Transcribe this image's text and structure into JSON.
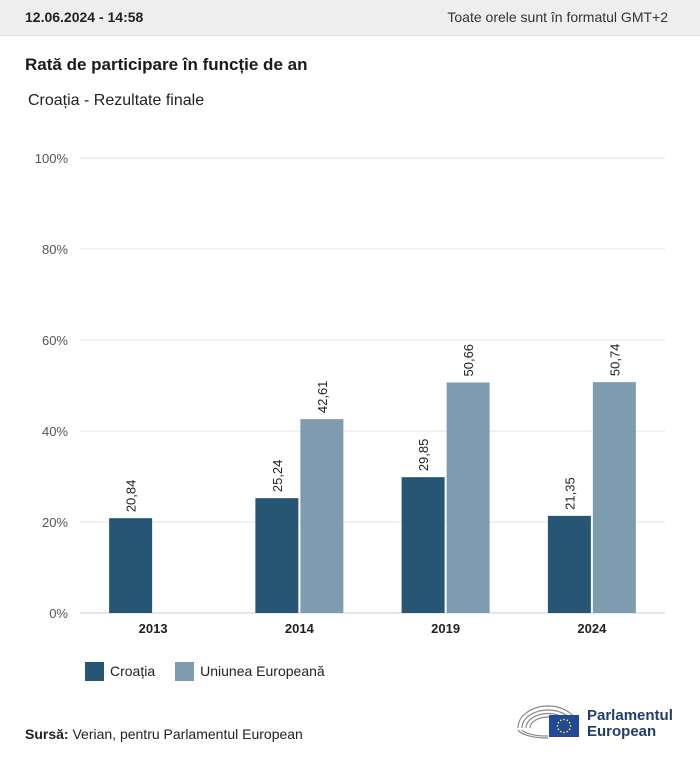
{
  "header": {
    "date": "12.06.2024 - 14:58",
    "timezone_note": "Toate orele sunt în formatul GMT+2"
  },
  "colors": {
    "croatia": "#275574",
    "eu": "#7e9bb0",
    "grid": "#e6e6e6",
    "eu_blue": "#1f4a9a",
    "eu_star": "#ffdd00"
  },
  "chart_data": {
    "type": "bar",
    "title": "Rată de participare în funcție de an",
    "subtitle": "Croația - Rezultate finale",
    "categories": [
      "2013",
      "2014",
      "2019",
      "2024"
    ],
    "series": [
      {
        "name": "Croația",
        "values": [
          20.84,
          25.24,
          29.85,
          21.35
        ]
      },
      {
        "name": "Uniunea Europeană",
        "values": [
          null,
          42.61,
          50.66,
          50.74
        ]
      }
    ],
    "value_labels": {
      "Croația": [
        "20,84",
        "25,24",
        "29,85",
        "21,35"
      ],
      "Uniunea Europeană": [
        "",
        "42,61",
        "50,66",
        "50,74"
      ]
    },
    "ylim": [
      0,
      100
    ],
    "yticks": [
      0,
      20,
      40,
      60,
      80,
      100
    ],
    "ytick_labels": [
      "0%",
      "20%",
      "40%",
      "60%",
      "80%",
      "100%"
    ],
    "xlabel": "",
    "ylabel": "",
    "grid": true,
    "legend_position": "bottom-left"
  },
  "footer": {
    "source_label": "Sursă:",
    "source_text": "Verian, pentru Parlamentul European",
    "logo_line1": "Parlamentul",
    "logo_line2": "European"
  }
}
